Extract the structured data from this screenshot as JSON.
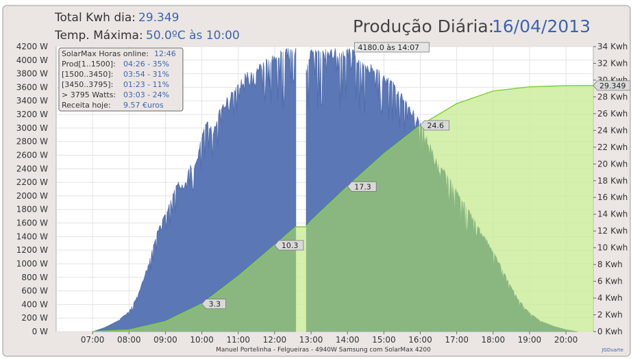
{
  "header": {
    "total_label": "Total Kwh dia:",
    "total_value": "29.349",
    "temp_label": "Temp. Máxima:",
    "temp_value": "50.0ºC às 10:00",
    "title_label": "Produção Diária:",
    "title_date": "16/04/2013"
  },
  "stats_box": {
    "rows": [
      {
        "label": "SolarMax Horas online:",
        "value": "12:46"
      },
      {
        "label": "Prod[1..1500]:",
        "value": "04:26 - 35%"
      },
      {
        "label": "[1500..3450]:",
        "value": "03:54 - 31%"
      },
      {
        "label": "[3450..3795]:",
        "value": "01:23 - 11%"
      },
      {
        "label": "> 3795 Watts:",
        "value": "03:03 - 24%"
      },
      {
        "label": "Receita hoje:",
        "value": "9.57 €uros"
      }
    ]
  },
  "footer": {
    "credit": "Manuel Portelinha - Felgueiras -  4940W Samsung com SolarMax 4200",
    "signature": "JGDuarte"
  },
  "colors": {
    "frame_bg": "#ebe6e3",
    "plot_bg": "#ffffff",
    "power_fill": "#5b77b5",
    "power_stroke": "#4a66a6",
    "energy_fill": "#c8ec95",
    "energy_line": "#7fd03a",
    "overlap_fill": "#6ba06a",
    "text_value": "#3d63b0",
    "text_dark": "#333333"
  },
  "chart_data": {
    "type": "area",
    "y_left": {
      "min": 0,
      "max": 4200,
      "step": 200,
      "unit": "W"
    },
    "y_right": {
      "min": 0,
      "max": 34,
      "step": 2,
      "unit": "Kwh"
    },
    "x": {
      "min": "06:00",
      "max": "20:45",
      "ticks": [
        "07:00",
        "08:00",
        "09:00",
        "10:00",
        "11:00",
        "12:00",
        "13:00",
        "14:00",
        "15:00",
        "16:00",
        "17:00",
        "18:00",
        "19:00",
        "20:00"
      ]
    },
    "gap": {
      "from": "12:35",
      "to": "12:52"
    },
    "series": [
      {
        "kind": "power",
        "points": [
          [
            "07:00",
            0
          ],
          [
            "07:20",
            60
          ],
          [
            "07:40",
            150
          ],
          [
            "08:00",
            300
          ],
          [
            "08:15",
            550
          ],
          [
            "08:30",
            950
          ],
          [
            "08:45",
            1450
          ],
          [
            "09:00",
            1750
          ],
          [
            "09:10",
            2000
          ],
          [
            "09:20",
            2250
          ],
          [
            "09:30",
            2150
          ],
          [
            "09:40",
            2450
          ],
          [
            "09:50",
            2500
          ],
          [
            "10:00",
            2900
          ],
          [
            "10:10",
            3150
          ],
          [
            "10:20",
            3000
          ],
          [
            "10:30",
            3350
          ],
          [
            "10:40",
            3450
          ],
          [
            "10:50",
            3550
          ],
          [
            "11:00",
            3650
          ],
          [
            "11:10",
            3800
          ],
          [
            "11:20",
            3900
          ],
          [
            "11:30",
            3950
          ],
          [
            "11:40",
            4000
          ],
          [
            "11:50",
            4050
          ],
          [
            "12:00",
            4100
          ],
          [
            "12:10",
            4150
          ],
          [
            "12:20",
            4180
          ],
          [
            "12:35",
            4180
          ],
          [
            "12:52",
            3950
          ],
          [
            "13:00",
            4180
          ],
          [
            "13:30",
            4180
          ],
          [
            "14:07",
            4180
          ],
          [
            "14:20",
            4050
          ],
          [
            "14:40",
            3950
          ],
          [
            "15:00",
            3800
          ],
          [
            "15:20",
            3650
          ],
          [
            "15:40",
            3400
          ],
          [
            "16:00",
            3100
          ],
          [
            "16:20",
            2700
          ],
          [
            "16:40",
            2400
          ],
          [
            "17:00",
            2100
          ],
          [
            "17:20",
            1800
          ],
          [
            "17:40",
            1500
          ],
          [
            "18:00",
            1200
          ],
          [
            "18:20",
            850
          ],
          [
            "18:40",
            500
          ],
          [
            "19:00",
            280
          ],
          [
            "19:20",
            150
          ],
          [
            "19:40",
            80
          ],
          [
            "20:00",
            30
          ],
          [
            "20:20",
            0
          ]
        ]
      },
      {
        "kind": "energy",
        "points": [
          [
            "07:00",
            0
          ],
          [
            "08:00",
            0.2
          ],
          [
            "09:00",
            1.2
          ],
          [
            "10:00",
            3.3
          ],
          [
            "11:00",
            6.6
          ],
          [
            "12:00",
            10.3
          ],
          [
            "12:35",
            12.5
          ],
          [
            "12:52",
            12.5
          ],
          [
            "13:00",
            13.2
          ],
          [
            "14:00",
            17.3
          ],
          [
            "15:00",
            21.2
          ],
          [
            "16:00",
            24.6
          ],
          [
            "17:00",
            27.2
          ],
          [
            "18:00",
            28.7
          ],
          [
            "19:00",
            29.2
          ],
          [
            "20:00",
            29.34
          ],
          [
            "20:45",
            29.349
          ]
        ],
        "labels": [
          {
            "time": "10:00",
            "text": "3.3"
          },
          {
            "time": "12:00",
            "text": "10.3"
          },
          {
            "time": "14:00",
            "text": "17.3"
          },
          {
            "time": "16:00",
            "text": "24.6"
          }
        ],
        "final_label": "29.349"
      }
    ],
    "peak_annotation": {
      "text": "4180.0 às 14:07",
      "time": "14:07",
      "value": 4180
    }
  }
}
